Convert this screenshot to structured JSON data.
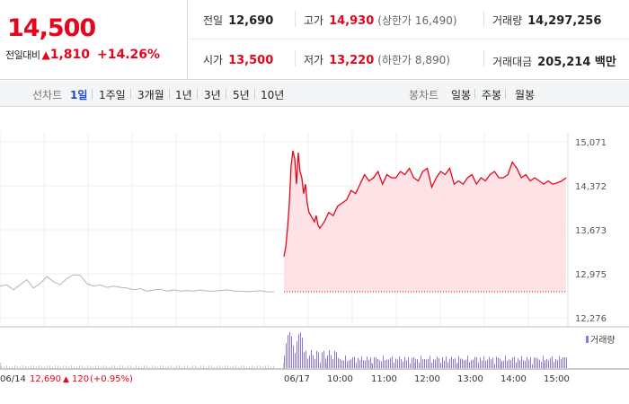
{
  "quote": {
    "price": "14,500",
    "change_label": "전일대비",
    "change_arrow": "▲",
    "change_value": "1,810",
    "change_percent": "+14.26%"
  },
  "stats": {
    "prev_close": {
      "label": "전일",
      "value": "12,690"
    },
    "high": {
      "label": "고가",
      "value": "14,930",
      "sub": "(상한가 16,490)"
    },
    "volume": {
      "label": "거래량",
      "value": "14,297,256"
    },
    "open": {
      "label": "시가",
      "value": "13,500"
    },
    "low": {
      "label": "저가",
      "value": "13,220",
      "sub": "(하한가 8,890)"
    },
    "amount": {
      "label": "거래대금",
      "value": "205,214 백만"
    }
  },
  "tabs": {
    "line_label": "선차트",
    "line_items": [
      "1일",
      "1주일",
      "3개월",
      "1년",
      "3년",
      "5년",
      "10년"
    ],
    "active_index": 0,
    "candle_label": "봉차트",
    "candle_items": [
      "일봉",
      "주봉",
      "월봉"
    ]
  },
  "chart_data": {
    "type": "line",
    "y_ticks": [
      "15,071",
      "14,372",
      "13,673",
      "12,975",
      "12,276"
    ],
    "ylim": [
      12276,
      15071
    ],
    "x_ticks": [
      "06/17",
      "10:00",
      "11:00",
      "12:00",
      "13:00",
      "14:00",
      "15:00"
    ],
    "prev_day": {
      "date": "06/14",
      "close": "12,690",
      "arrow": "▲",
      "change": "120",
      "pct": "(+0.95%)"
    },
    "volume_legend": "거래량",
    "series": [
      {
        "points": [
          [
            0,
            13250
          ],
          [
            2,
            13400
          ],
          [
            4,
            13700
          ],
          [
            6,
            14100
          ],
          [
            8,
            14700
          ],
          [
            10,
            14930
          ],
          [
            12,
            14800
          ],
          [
            14,
            14400
          ],
          [
            16,
            14900
          ],
          [
            18,
            14600
          ],
          [
            20,
            14500
          ],
          [
            22,
            14250
          ],
          [
            24,
            14400
          ],
          [
            26,
            14100
          ],
          [
            28,
            13950
          ],
          [
            30,
            13900
          ],
          [
            32,
            13850
          ],
          [
            34,
            13800
          ],
          [
            36,
            13900
          ],
          [
            38,
            13750
          ],
          [
            40,
            13700
          ],
          [
            45,
            13800
          ],
          [
            50,
            13950
          ],
          [
            55,
            13900
          ],
          [
            60,
            14050
          ],
          [
            65,
            14100
          ],
          [
            70,
            14150
          ],
          [
            75,
            14300
          ],
          [
            80,
            14250
          ],
          [
            85,
            14400
          ],
          [
            90,
            14550
          ],
          [
            95,
            14450
          ],
          [
            100,
            14500
          ],
          [
            105,
            14600
          ],
          [
            110,
            14400
          ],
          [
            115,
            14550
          ],
          [
            120,
            14500
          ],
          [
            125,
            14500
          ],
          [
            130,
            14600
          ],
          [
            135,
            14550
          ],
          [
            140,
            14650
          ],
          [
            145,
            14500
          ],
          [
            150,
            14450
          ],
          [
            155,
            14600
          ],
          [
            160,
            14650
          ],
          [
            165,
            14350
          ],
          [
            170,
            14500
          ],
          [
            175,
            14600
          ],
          [
            180,
            14550
          ],
          [
            185,
            14650
          ],
          [
            190,
            14400
          ],
          [
            195,
            14450
          ],
          [
            200,
            14400
          ],
          [
            205,
            14500
          ],
          [
            210,
            14550
          ],
          [
            215,
            14400
          ],
          [
            220,
            14500
          ],
          [
            225,
            14450
          ],
          [
            230,
            14550
          ],
          [
            235,
            14600
          ],
          [
            240,
            14500
          ],
          [
            245,
            14500
          ],
          [
            250,
            14550
          ],
          [
            255,
            14750
          ],
          [
            260,
            14650
          ],
          [
            265,
            14500
          ],
          [
            270,
            14550
          ],
          [
            275,
            14450
          ],
          [
            280,
            14500
          ],
          [
            285,
            14450
          ],
          [
            290,
            14400
          ],
          [
            295,
            14450
          ],
          [
            300,
            14400
          ],
          [
            305,
            14420
          ],
          [
            310,
            14450
          ],
          [
            315,
            14500
          ]
        ]
      },
      {
        "points": [
          [
            0,
            12780
          ],
          [
            5,
            12800
          ],
          [
            10,
            12720
          ],
          [
            15,
            12800
          ],
          [
            20,
            12880
          ],
          [
            25,
            12750
          ],
          [
            30,
            12820
          ],
          [
            35,
            12930
          ],
          [
            40,
            12850
          ],
          [
            45,
            12800
          ],
          [
            50,
            12900
          ],
          [
            55,
            12960
          ],
          [
            60,
            12950
          ],
          [
            65,
            12820
          ],
          [
            70,
            12780
          ],
          [
            75,
            12800
          ],
          [
            80,
            12760
          ],
          [
            85,
            12780
          ],
          [
            90,
            12760
          ],
          [
            95,
            12750
          ],
          [
            100,
            12720
          ],
          [
            105,
            12740
          ],
          [
            110,
            12700
          ],
          [
            115,
            12720
          ],
          [
            120,
            12730
          ],
          [
            125,
            12700
          ],
          [
            130,
            12720
          ],
          [
            135,
            12700
          ],
          [
            140,
            12710
          ],
          [
            145,
            12700
          ],
          [
            150,
            12720
          ],
          [
            155,
            12700
          ],
          [
            160,
            12700
          ],
          [
            165,
            12710
          ],
          [
            170,
            12720
          ],
          [
            175,
            12700
          ],
          [
            180,
            12700
          ],
          [
            185,
            12690
          ],
          [
            190,
            12700
          ],
          [
            195,
            12705
          ],
          [
            200,
            12690
          ],
          [
            205,
            12690
          ]
        ]
      }
    ]
  }
}
